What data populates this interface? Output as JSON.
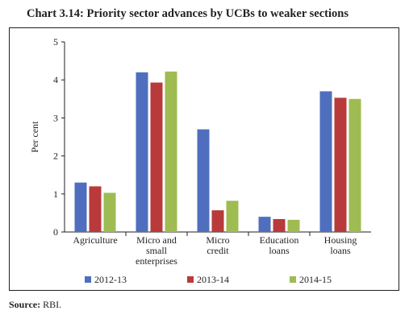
{
  "header": {
    "title": "Chart 3.14: Priority sector advances by UCBs to weaker sections"
  },
  "source": {
    "label": "Source:",
    "text": "RBI."
  },
  "chart_data": {
    "type": "bar",
    "categories": [
      [
        "Agriculture"
      ],
      [
        "Micro and",
        "small",
        "enterprises"
      ],
      [
        "Micro",
        "credit"
      ],
      [
        "Education",
        "loans"
      ],
      [
        "Housing",
        "loans"
      ]
    ],
    "series": [
      {
        "name": "2012-13",
        "color": "#4f6fbe",
        "values": [
          1.3,
          4.2,
          2.7,
          0.4,
          3.7
        ]
      },
      {
        "name": "2013-14",
        "color": "#b83a3a",
        "values": [
          1.2,
          3.93,
          0.57,
          0.34,
          3.53
        ]
      },
      {
        "name": "2014-15",
        "color": "#9ebc52",
        "values": [
          1.03,
          4.22,
          0.82,
          0.32,
          3.5
        ]
      }
    ],
    "ylabel": "Per cent",
    "xlabel": "",
    "ylim": [
      0,
      5
    ],
    "yticks": [
      0,
      1,
      2,
      3,
      4,
      5
    ],
    "grid": false,
    "legend_position": "bottom"
  }
}
